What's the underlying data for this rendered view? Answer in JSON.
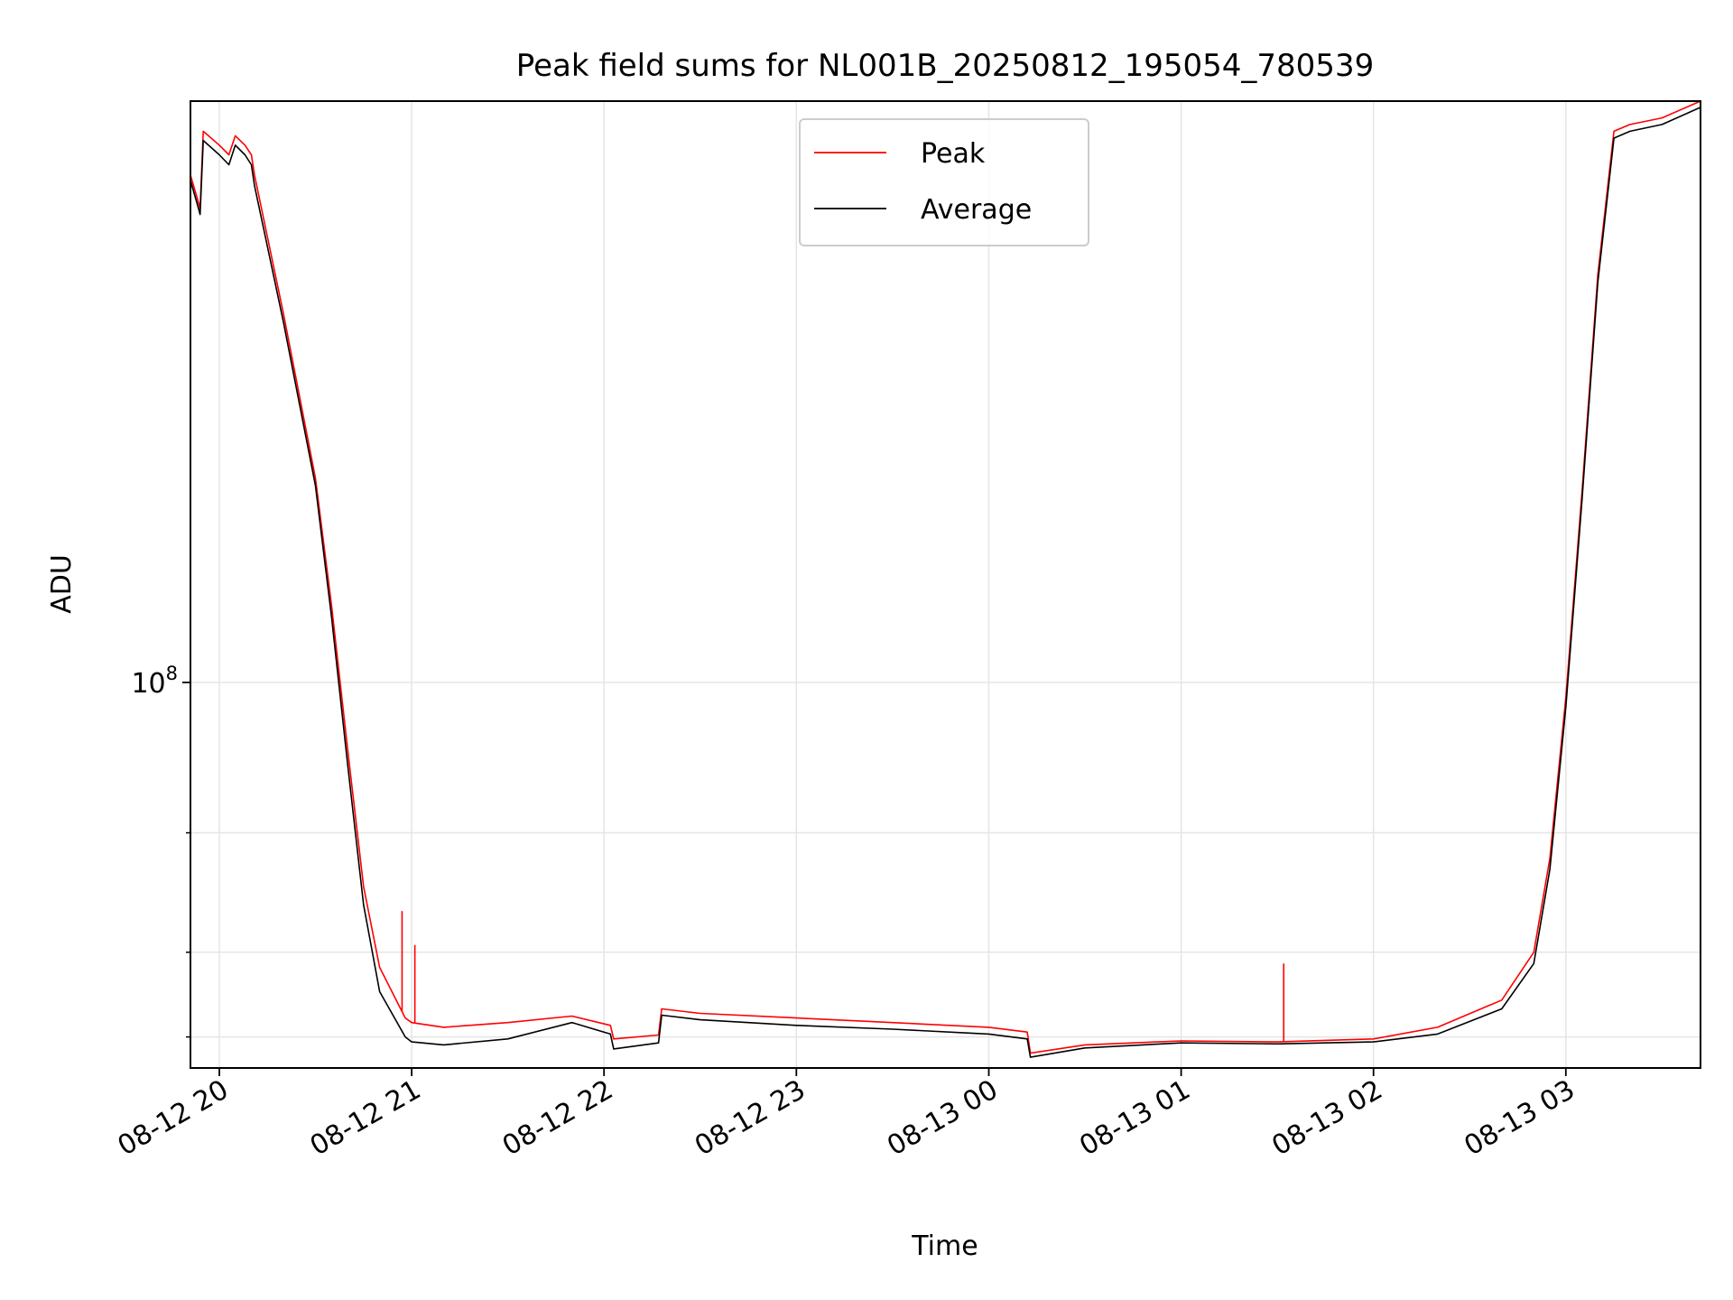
{
  "chart_data": {
    "type": "line",
    "title": "Peak field sums for NL001B_20250812_195054_780539",
    "xlabel": "Time",
    "ylabel": "ADU",
    "yscale": "log",
    "x_range": [
      "2025-08-12 19:51",
      "2025-08-13 03:42"
    ],
    "ylim": [
      27000000,
      720000000
    ],
    "x_ticks": [
      "2025-08-12 20:00",
      "2025-08-12 21:00",
      "2025-08-12 22:00",
      "2025-08-12 23:00",
      "2025-08-13 00:00",
      "2025-08-13 01:00",
      "2025-08-13 02:00",
      "2025-08-13 03:00"
    ],
    "x_tick_labels": [
      "08-12 20",
      "08-12 21",
      "08-12 22",
      "08-12 23",
      "08-13 00",
      "08-13 01",
      "08-13 02",
      "08-13 03"
    ],
    "y_major_ticks": [
      {
        "value": 100000000,
        "base": "10",
        "exp": "8"
      }
    ],
    "y_minor_ticks": [
      30000000,
      40000000,
      60000000
    ],
    "grid": true,
    "legend": {
      "position": "top-center",
      "entries": [
        "Peak",
        "Average"
      ]
    },
    "series": [
      {
        "name": "Peak",
        "color": "#ff0000",
        "x": [
          "2025-08-12 19:51",
          "2025-08-12 19:53",
          "2025-08-12 19:54",
          "2025-08-12 19:55",
          "2025-08-12 20:00",
          "2025-08-12 20:03",
          "2025-08-12 20:05",
          "2025-08-12 20:08",
          "2025-08-12 20:10",
          "2025-08-12 20:11",
          "2025-08-12 20:20",
          "2025-08-12 20:30",
          "2025-08-12 20:35",
          "2025-08-12 20:40",
          "2025-08-12 20:45",
          "2025-08-12 20:50",
          "2025-08-12 20:58",
          "2025-08-12 21:00",
          "2025-08-12 21:10",
          "2025-08-12 21:30",
          "2025-08-12 21:50",
          "2025-08-12 22:02",
          "2025-08-12 22:03",
          "2025-08-12 22:17",
          "2025-08-12 22:18",
          "2025-08-12 22:30",
          "2025-08-12 23:00",
          "2025-08-12 23:30",
          "2025-08-13 00:00",
          "2025-08-13 00:12",
          "2025-08-13 00:13",
          "2025-08-13 00:30",
          "2025-08-13 01:00",
          "2025-08-13 01:30",
          "2025-08-13 02:00",
          "2025-08-13 02:20",
          "2025-08-13 02:40",
          "2025-08-13 02:50",
          "2025-08-13 02:55",
          "2025-08-13 03:00",
          "2025-08-13 03:05",
          "2025-08-13 03:10",
          "2025-08-13 03:15",
          "2025-08-13 03:20",
          "2025-08-13 03:30",
          "2025-08-13 03:42"
        ],
        "values": [
          560000000,
          520000000,
          500000000,
          650000000,
          620000000,
          600000000,
          640000000,
          620000000,
          600000000,
          560000000,
          350000000,
          200000000,
          130000000,
          80000000,
          50000000,
          38000000,
          32000000,
          31500000,
          31000000,
          31500000,
          32200000,
          31200000,
          29800000,
          30200000,
          33000000,
          32500000,
          32000000,
          31500000,
          31000000,
          30500000,
          28400000,
          29200000,
          29600000,
          29500000,
          29800000,
          31000000,
          34000000,
          40000000,
          55000000,
          95000000,
          190000000,
          400000000,
          650000000,
          665000000,
          680000000,
          720000000
        ]
      },
      {
        "name": "Average",
        "color": "#000000",
        "x": [
          "2025-08-12 19:51",
          "2025-08-12 19:53",
          "2025-08-12 19:54",
          "2025-08-12 19:55",
          "2025-08-12 20:00",
          "2025-08-12 20:03",
          "2025-08-12 20:05",
          "2025-08-12 20:08",
          "2025-08-12 20:10",
          "2025-08-12 20:11",
          "2025-08-12 20:20",
          "2025-08-12 20:30",
          "2025-08-12 20:35",
          "2025-08-12 20:40",
          "2025-08-12 20:45",
          "2025-08-12 20:50",
          "2025-08-12 20:58",
          "2025-08-12 21:00",
          "2025-08-12 21:10",
          "2025-08-12 21:30",
          "2025-08-12 21:50",
          "2025-08-12 22:02",
          "2025-08-12 22:03",
          "2025-08-12 22:17",
          "2025-08-12 22:18",
          "2025-08-12 22:30",
          "2025-08-12 23:00",
          "2025-08-12 23:30",
          "2025-08-13 00:00",
          "2025-08-13 00:12",
          "2025-08-13 00:13",
          "2025-08-13 00:30",
          "2025-08-13 01:00",
          "2025-08-13 01:30",
          "2025-08-13 02:00",
          "2025-08-13 02:20",
          "2025-08-13 02:40",
          "2025-08-13 02:50",
          "2025-08-13 02:55",
          "2025-08-13 03:00",
          "2025-08-13 03:05",
          "2025-08-13 03:10",
          "2025-08-13 03:15",
          "2025-08-13 03:20",
          "2025-08-13 03:30",
          "2025-08-13 03:42"
        ],
        "values": [
          550000000,
          510000000,
          490000000,
          630000000,
          600000000,
          580000000,
          620000000,
          600000000,
          580000000,
          540000000,
          340000000,
          195000000,
          125000000,
          76000000,
          47000000,
          35000000,
          30000000,
          29500000,
          29200000,
          29800000,
          31500000,
          30300000,
          28800000,
          29400000,
          32300000,
          31800000,
          31200000,
          30800000,
          30300000,
          29800000,
          28000000,
          28900000,
          29400000,
          29300000,
          29500000,
          30300000,
          33000000,
          38500000,
          53000000,
          92000000,
          185000000,
          390000000,
          635000000,
          650000000,
          665000000,
          705000000
        ]
      }
    ],
    "spikes": [
      {
        "series": "Peak",
        "x": "2025-08-12 20:57",
        "value": 46000000
      },
      {
        "series": "Peak",
        "x": "2025-08-12 21:01",
        "value": 41000000
      },
      {
        "series": "Peak",
        "x": "2025-08-13 01:32",
        "value": 38500000
      }
    ]
  }
}
